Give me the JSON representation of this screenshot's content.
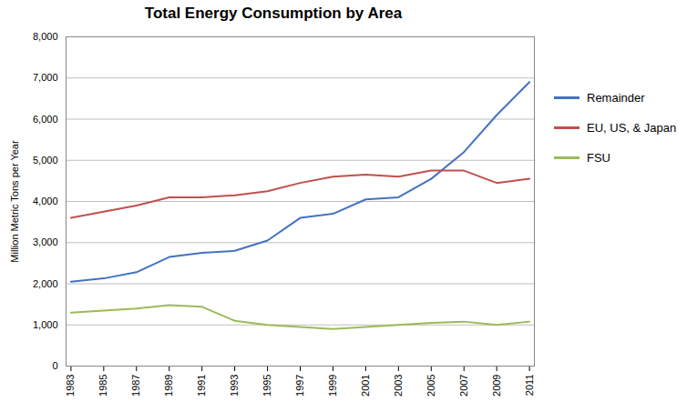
{
  "chart_data": {
    "type": "line",
    "title": "Total Energy Consumption by Area",
    "ylabel": "Million Metric Tons per Year",
    "x": [
      1983,
      1985,
      1987,
      1989,
      1991,
      1993,
      1995,
      1997,
      1999,
      2001,
      2003,
      2005,
      2007,
      2009,
      2011
    ],
    "series": [
      {
        "name": "Remainder",
        "color": "#4472C4",
        "values": [
          2050,
          2130,
          2280,
          2650,
          2750,
          2800,
          3050,
          3600,
          3700,
          4050,
          4100,
          4550,
          5200,
          6100,
          6900
        ]
      },
      {
        "name": "EU, US, & Japan",
        "color": "#C0504D",
        "values": [
          3600,
          3750,
          3900,
          4100,
          4100,
          4150,
          4250,
          4450,
          4600,
          4650,
          4600,
          4750,
          4750,
          4450,
          4550
        ]
      },
      {
        "name": "FSU",
        "color": "#9BBB59",
        "values": [
          1300,
          1350,
          1400,
          1480,
          1440,
          1100,
          1000,
          950,
          900,
          950,
          1000,
          1050,
          1080,
          1000,
          1080
        ]
      }
    ],
    "xlim": [
      1982.7,
      2011.3
    ],
    "xticks": [
      1983,
      1985,
      1987,
      1989,
      1991,
      1993,
      1995,
      1997,
      1999,
      2001,
      2003,
      2005,
      2007,
      2009,
      2011
    ],
    "ylim": [
      0,
      8000
    ],
    "yticks": [
      0,
      {
        "value": 1000,
        "label": "1,000"
      },
      {
        "value": 2000,
        "label": "2,000"
      },
      {
        "value": 3000,
        "label": "3,000"
      },
      {
        "value": 4000,
        "label": "4,000"
      },
      {
        "value": 5000,
        "label": "5,000"
      },
      {
        "value": 6000,
        "label": "6,000"
      },
      {
        "value": 7000,
        "label": "7,000"
      },
      {
        "value": 8000,
        "label": "8,000"
      }
    ],
    "grid": true,
    "legend": "right"
  }
}
